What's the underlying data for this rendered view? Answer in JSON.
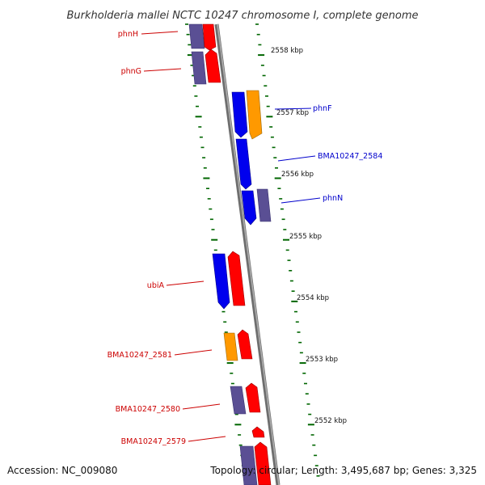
{
  "title": "Burkholderia mallei NCTC 10247 chromosome I, complete genome",
  "accession": "Accession: NC_009080",
  "summary": "Topology: circular; Length: 3,495,687 bp; Genes: 3,325",
  "colors": {
    "forward_red": "#ff0000",
    "reverse_blue": "#0000ee",
    "slate": "#5a4f94",
    "orange": "#ff9900",
    "tick_green": "#006600",
    "backbone_gray": "#888888",
    "label_red": "#cc0000",
    "label_blue": "#0000cc"
  },
  "scale_labels": [
    "2558 kbp",
    "2557 kbp",
    "2556 kbp",
    "2555 kbp",
    "2554 kbp",
    "2553 kbp",
    "2552 kbp"
  ],
  "gene_labels": [
    {
      "text": "phnH",
      "strand": "left"
    },
    {
      "text": "phnG",
      "strand": "left"
    },
    {
      "text": "phnF",
      "strand": "right"
    },
    {
      "text": "BMA10247_2584",
      "strand": "right"
    },
    {
      "text": "phnN",
      "strand": "right"
    },
    {
      "text": "ubiA",
      "strand": "left"
    },
    {
      "text": "BMA10247_2581",
      "strand": "left"
    },
    {
      "text": "BMA10247_2580",
      "strand": "left"
    },
    {
      "text": "BMA10247_2579",
      "strand": "left"
    }
  ]
}
